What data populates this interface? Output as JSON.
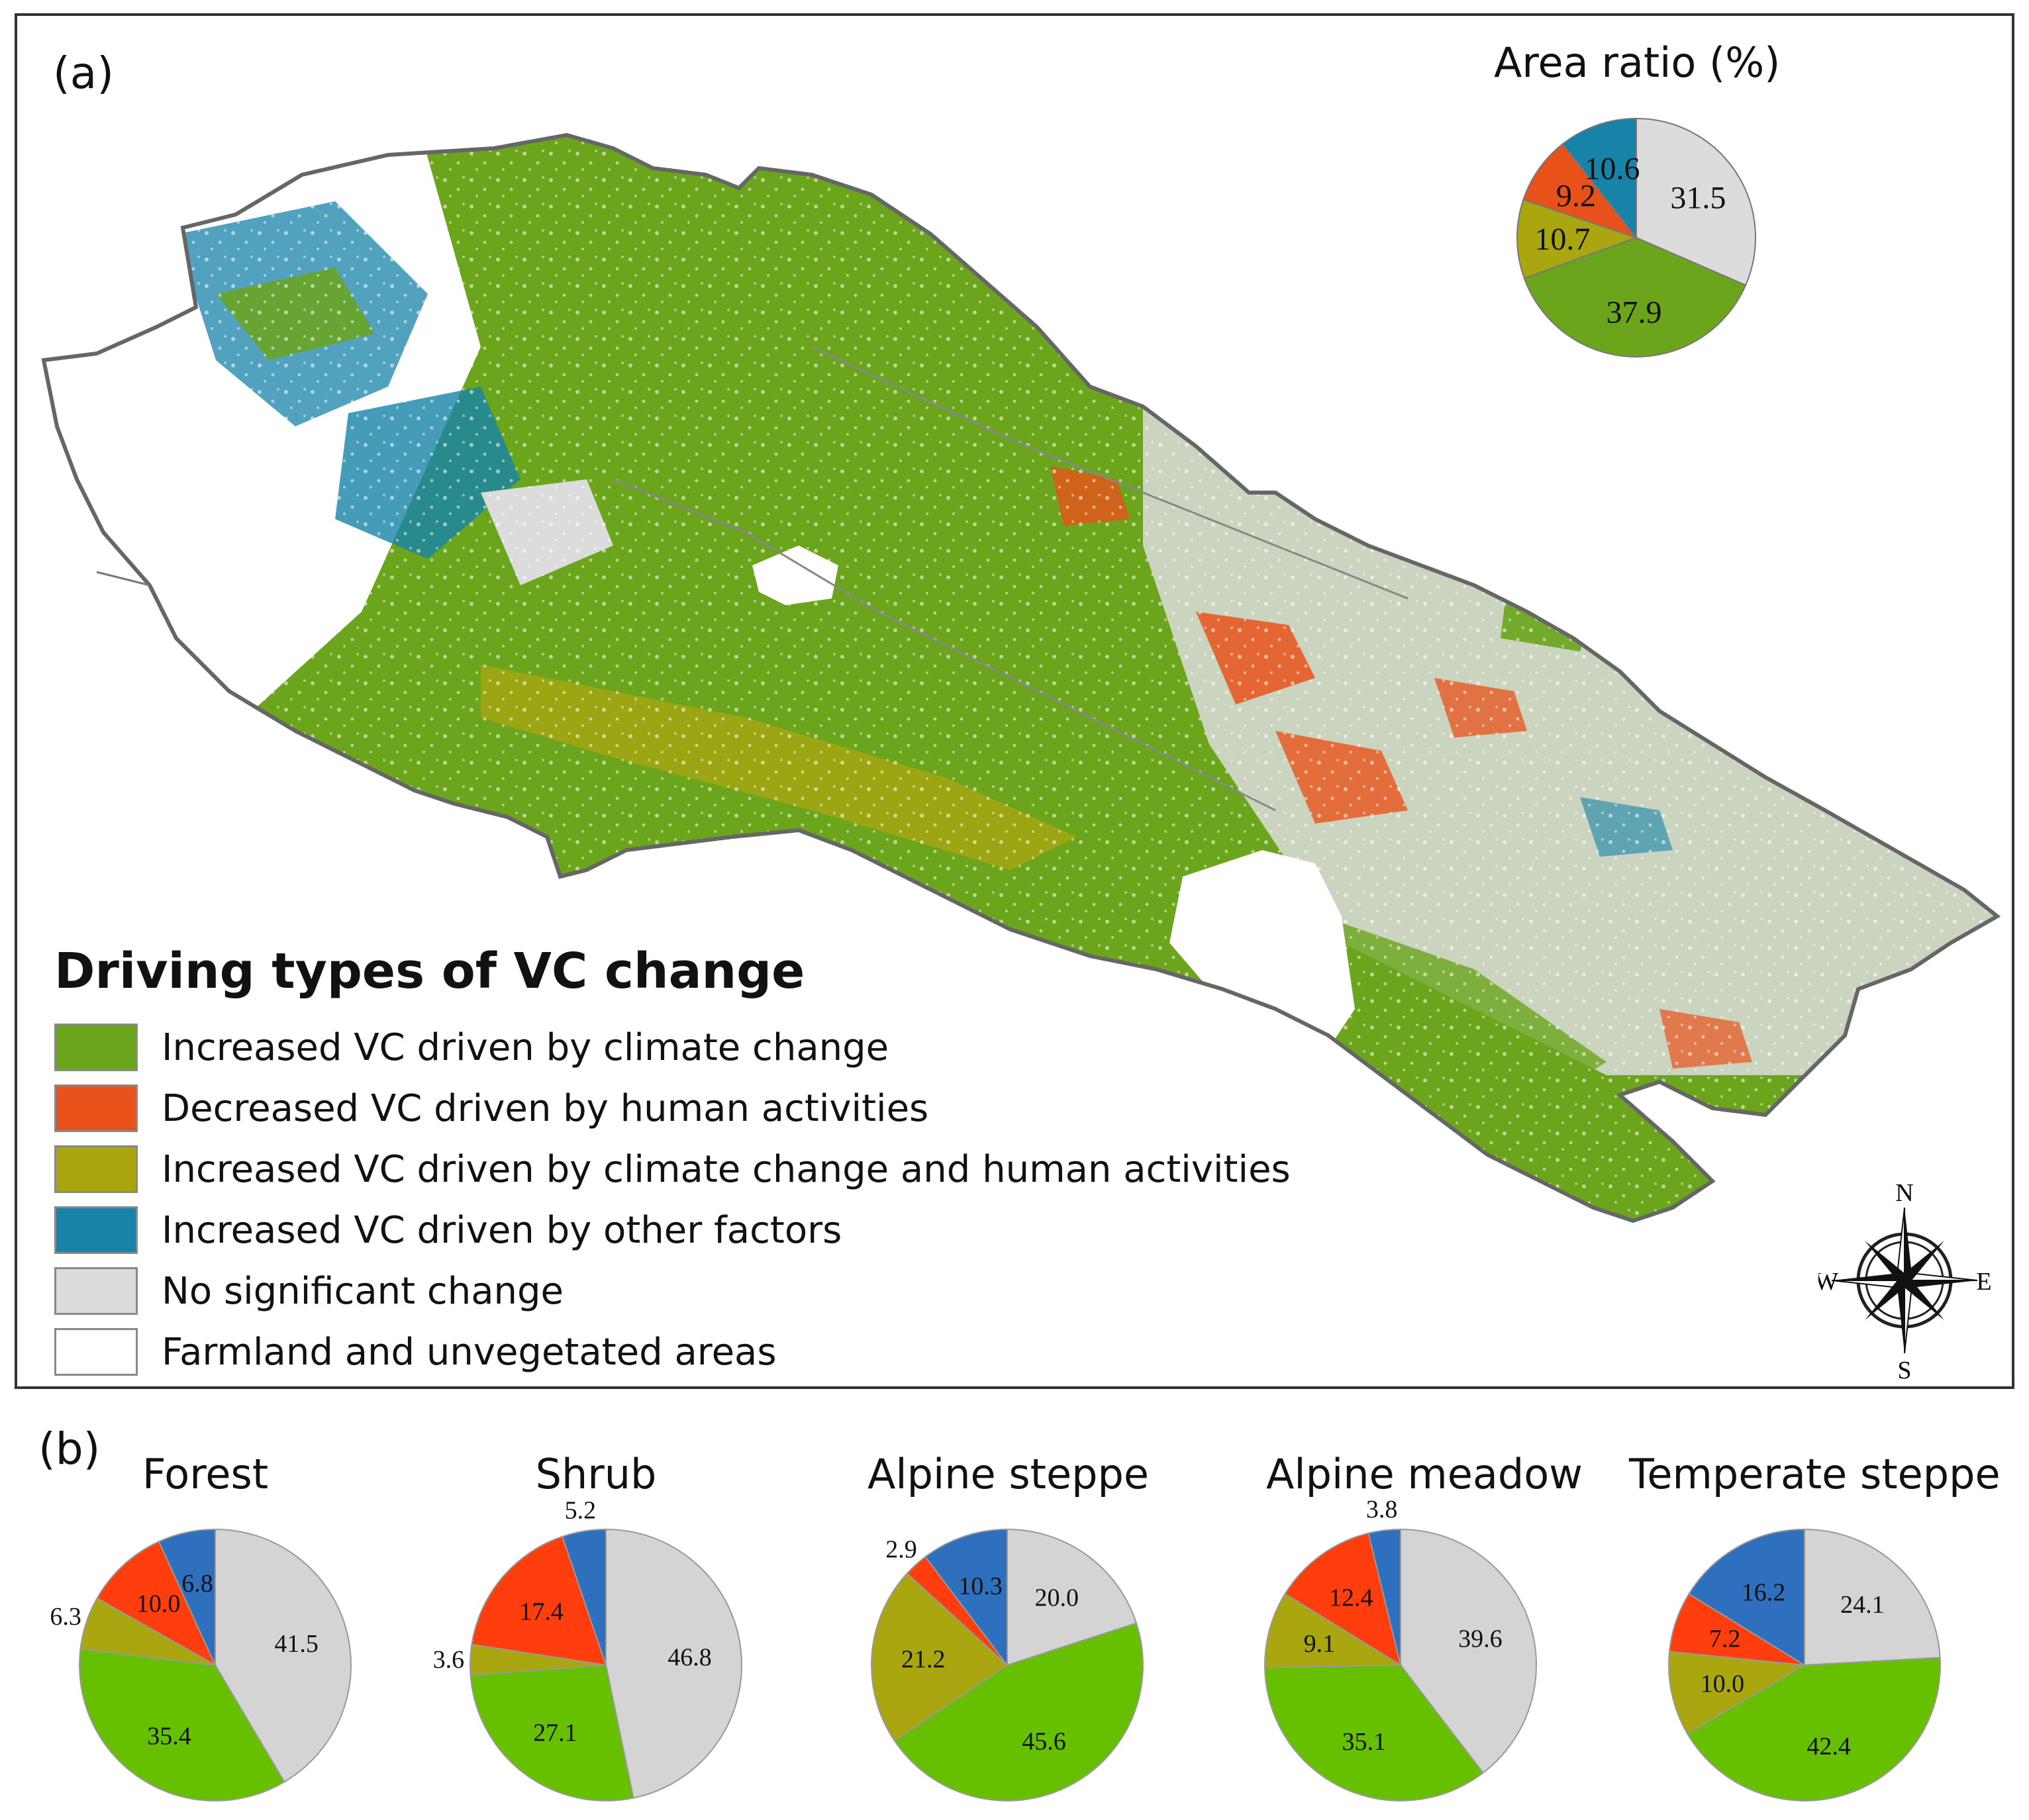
{
  "panel_a": {
    "label": "(a)",
    "pie_title": "Area ratio (%)",
    "legend": {
      "title": "Driving types of VC change",
      "items": [
        {
          "key": "climate",
          "label": "Increased VC driven by climate change",
          "color": "#6aa51c"
        },
        {
          "key": "human",
          "label": "Decreased VC driven by human activities",
          "color": "#e8521a"
        },
        {
          "key": "both",
          "label": "Increased VC driven by climate change and human activities",
          "color": "#a9a610"
        },
        {
          "key": "other",
          "label": "Increased VC driven by other factors",
          "color": "#1783a8"
        },
        {
          "key": "nochange",
          "label": "No significant change",
          "color": "#dcdcdc"
        },
        {
          "key": "farmland",
          "label": "Farmland and unvegetated areas",
          "color": "#ffffff"
        }
      ]
    },
    "compass": {
      "n": "N",
      "s": "S",
      "e": "E",
      "w": "W"
    }
  },
  "panel_b": {
    "label": "(b)"
  },
  "chart_data": [
    {
      "type": "pie",
      "title": "Area ratio (%)",
      "labels": [
        "No significant change",
        "Increased VC driven by climate change",
        "Increased VC driven by climate change and human activities",
        "Decreased VC driven by human activities",
        "Increased VC driven by other factors"
      ],
      "values": [
        31.5,
        37.9,
        10.7,
        9.2,
        10.6
      ],
      "value_labels": [
        "31.5",
        "37.9",
        "10.7",
        "9.2",
        "10.6"
      ],
      "colors": [
        "#dcdcdc",
        "#6aa51c",
        "#a9a610",
        "#e8521a",
        "#1783a8"
      ]
    },
    {
      "type": "pie",
      "title": "Forest",
      "values": [
        41.5,
        35.4,
        6.3,
        10.0,
        6.8
      ],
      "value_labels": [
        "41.5",
        "35.4",
        "6.3",
        "10.0",
        "6.8"
      ],
      "colors": [
        "#d4d4d4",
        "#66c000",
        "#a9a610",
        "#ff3d0d",
        "#2e6fbe"
      ]
    },
    {
      "type": "pie",
      "title": "Shrub",
      "values": [
        46.8,
        27.1,
        3.6,
        17.4,
        5.2
      ],
      "value_labels": [
        "46.8",
        "27.1",
        "3.6",
        "17.4",
        "5.2"
      ],
      "colors": [
        "#d4d4d4",
        "#66c000",
        "#a9a610",
        "#ff3d0d",
        "#2e6fbe"
      ]
    },
    {
      "type": "pie",
      "title": "Alpine steppe",
      "values": [
        20.0,
        45.6,
        21.2,
        2.9,
        10.3
      ],
      "value_labels": [
        "20.0",
        "45.6",
        "21.2",
        "2.9",
        "10.3"
      ],
      "colors": [
        "#d4d4d4",
        "#66c000",
        "#a9a610",
        "#ff3d0d",
        "#2e6fbe"
      ]
    },
    {
      "type": "pie",
      "title": "Alpine meadow",
      "values": [
        39.6,
        35.1,
        9.1,
        12.4,
        3.8
      ],
      "value_labels": [
        "39.6",
        "35.1",
        "9.1",
        "12.4",
        "3.8"
      ],
      "colors": [
        "#d4d4d4",
        "#66c000",
        "#a9a610",
        "#ff3d0d",
        "#2e6fbe"
      ]
    },
    {
      "type": "pie",
      "title": "Temperate steppe",
      "values": [
        24.1,
        42.4,
        10.0,
        7.2,
        16.2
      ],
      "value_labels": [
        "24.1",
        "42.4",
        "10.0",
        "7.2",
        "16.2"
      ],
      "colors": [
        "#d4d4d4",
        "#66c000",
        "#a9a610",
        "#ff3d0d",
        "#2e6fbe"
      ]
    }
  ]
}
